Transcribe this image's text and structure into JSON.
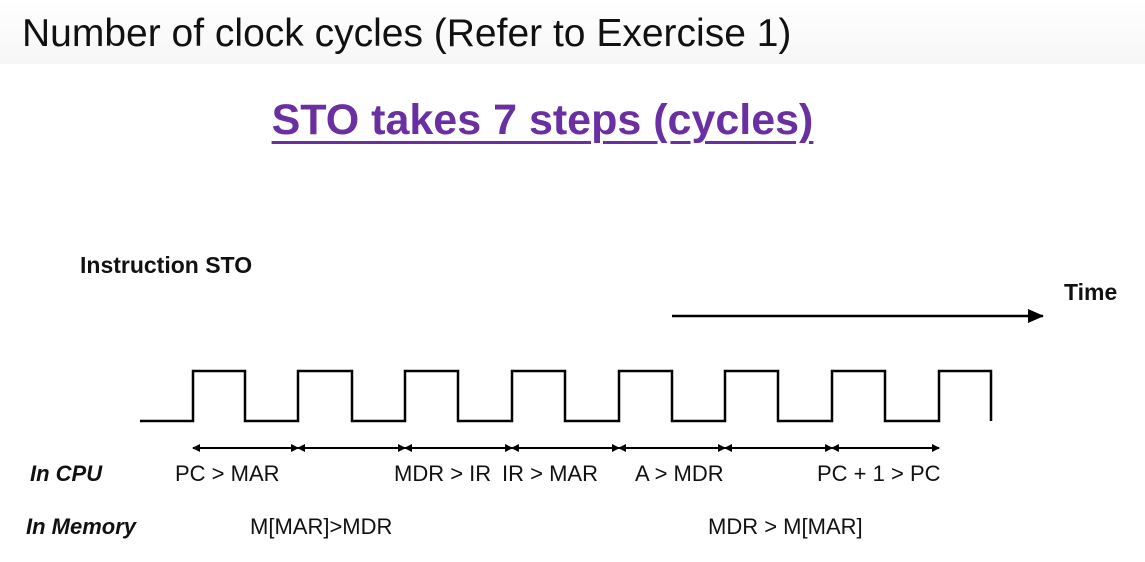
{
  "slide": {
    "title": "Number of clock cycles (Refer to Exercise 1)",
    "subtitle": "STO takes 7 steps (cycles)"
  },
  "diagram": {
    "instruction_label": "Instruction STO",
    "time_label": "Time",
    "cycles": 7,
    "rows": {
      "cpu_label": "In CPU",
      "memory_label": "In Memory"
    },
    "cpu_steps": [
      "PC > MAR",
      "MDR > IR",
      "IR > MAR",
      "A > MDR",
      "PC + 1 > PC"
    ],
    "memory_steps": [
      "M[MAR]>MDR",
      "MDR > M[MAR]"
    ],
    "colors": {
      "title_accent": "#6a2fa0",
      "line": "#000000"
    }
  }
}
